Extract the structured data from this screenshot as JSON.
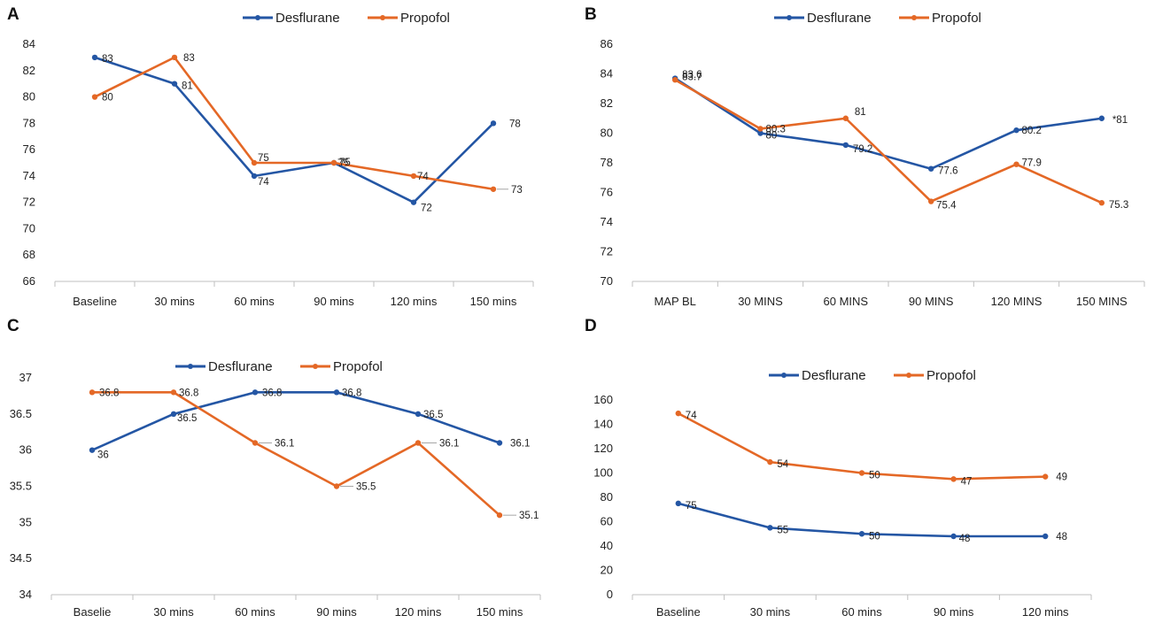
{
  "colors": {
    "desflurane": "#2456a4",
    "propofol": "#e46826",
    "axis": "#bfbfbf",
    "leader": "#a6a6a6"
  },
  "chart_data": [
    {
      "panel": "A",
      "type": "line",
      "categories": [
        "Baseline",
        "30 mins",
        "60 mins",
        "90 mins",
        "120 mins",
        "150 mins"
      ],
      "ylim": [
        66,
        84
      ],
      "ystep": 2,
      "legend": "top-center",
      "grid": false,
      "series": [
        {
          "name": "Desflurane",
          "values": [
            83,
            81,
            74,
            75,
            72,
            78
          ],
          "labels": [
            "83",
            "81",
            "74",
            "75",
            "72",
            "78"
          ]
        },
        {
          "name": "Propofol",
          "values": [
            80,
            83,
            75,
            75,
            74,
            73
          ],
          "labels": [
            "80",
            "83",
            "75",
            "75",
            "74",
            "73"
          ]
        }
      ]
    },
    {
      "panel": "B",
      "type": "line",
      "categories": [
        "MAP BL",
        "30 MINS",
        "60 MINS",
        "90 MINS",
        "120 MINS",
        "150 MINS"
      ],
      "ylim": [
        70,
        86
      ],
      "ystep": 2,
      "legend": "top-center",
      "grid": false,
      "series": [
        {
          "name": "Desflurane",
          "values": [
            83.7,
            80,
            79.2,
            77.6,
            80.2,
            81
          ],
          "labels": [
            "83.7",
            "80",
            "79.2",
            "77.6",
            "80.2",
            "*81"
          ]
        },
        {
          "name": "Propofol",
          "values": [
            83.6,
            80.3,
            81,
            75.4,
            77.9,
            75.3
          ],
          "labels": [
            "83.6",
            "80.3",
            "81",
            "75.4",
            "77.9",
            "75.3"
          ]
        }
      ]
    },
    {
      "panel": "C",
      "type": "line",
      "categories": [
        "Baselie",
        "30 mins",
        "60 mins",
        "90 mins",
        "120 mins",
        "150 mins"
      ],
      "ylim": [
        34,
        37
      ],
      "ystep": 0.5,
      "legend": "top-center",
      "grid": false,
      "series": [
        {
          "name": "Desflurane",
          "values": [
            36,
            36.5,
            36.8,
            36.8,
            36.5,
            36.1
          ],
          "labels": [
            "36",
            "36.5",
            "36.8",
            "36.8",
            "36.5",
            "36.1"
          ]
        },
        {
          "name": "Propofol",
          "values": [
            36.8,
            36.8,
            36.1,
            35.5,
            36.1,
            35.1
          ],
          "labels": [
            "36.8",
            "36.8",
            "36.1",
            "35.5",
            "36.1",
            "35.1"
          ]
        }
      ]
    },
    {
      "panel": "D",
      "type": "line",
      "categories": [
        "Baseline",
        "30 mins",
        "60 mins",
        "90 mins",
        "120 mins"
      ],
      "ylim": [
        0,
        160
      ],
      "ystep": 20,
      "legend": "top-center",
      "grid": false,
      "series": [
        {
          "name": "Desflurane",
          "values": [
            75,
            55,
            50,
            48,
            48
          ],
          "labels": [
            "75",
            "55",
            "50",
            "48",
            "48"
          ]
        },
        {
          "name": "Propofol",
          "values": [
            149,
            109,
            100,
            95,
            97
          ],
          "labels": [
            "74",
            "54",
            "50",
            "47",
            "49"
          ]
        }
      ]
    }
  ]
}
